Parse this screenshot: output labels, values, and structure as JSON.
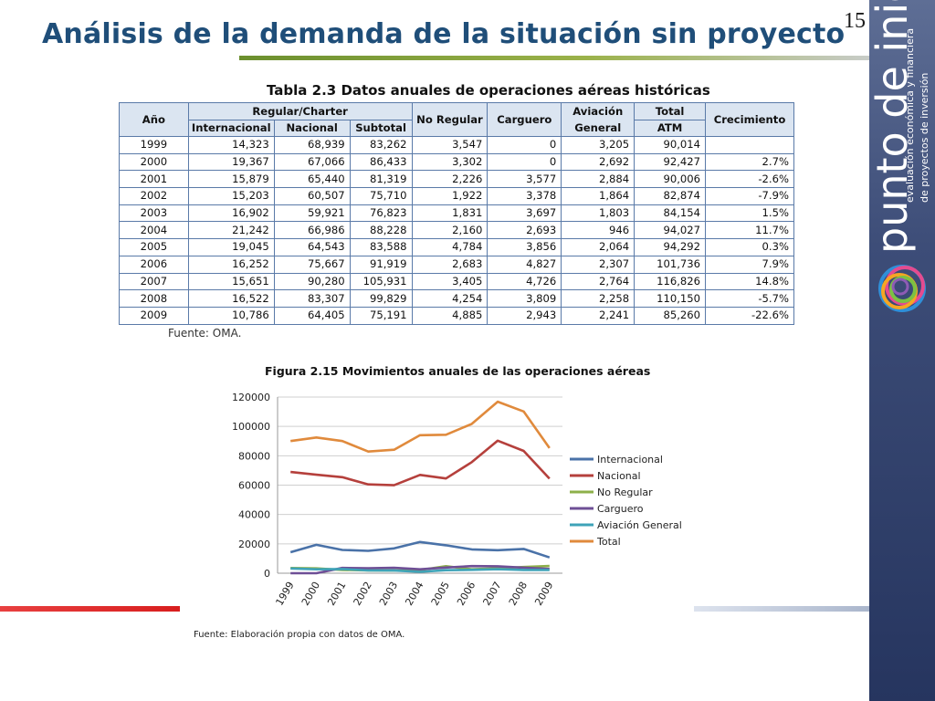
{
  "slide": {
    "title": "Análisis de la demanda de la situación sin proyecto",
    "page_number": "15"
  },
  "brand": {
    "name": "punto de inicio",
    "tagline_line1": "evaluación económica y financiera",
    "tagline_line2": "de proyectos de inversión",
    "colors": [
      "#2f8fd8",
      "#e44b8f",
      "#f5a623",
      "#7cc242",
      "#8e5bb5"
    ]
  },
  "table": {
    "caption": "Tabla 2.3 Datos anuales de operaciones aéreas históricas",
    "headers": {
      "anio": "Año",
      "regular_charter": "Regular/Charter",
      "internacional": "Internacional",
      "nacional": "Nacional",
      "subtotal": "Subtotal",
      "no_regular": "No Regular",
      "carguero": "Carguero",
      "aviacion_general": "Aviación General",
      "total": "Total",
      "atm": "ATM",
      "crecimiento": "Crecimiento"
    },
    "rows": [
      [
        "1999",
        "14,323",
        "68,939",
        "83,262",
        "3,547",
        "0",
        "3,205",
        "90,014",
        ""
      ],
      [
        "2000",
        "19,367",
        "67,066",
        "86,433",
        "3,302",
        "0",
        "2,692",
        "92,427",
        "2.7%"
      ],
      [
        "2001",
        "15,879",
        "65,440",
        "81,319",
        "2,226",
        "3,577",
        "2,884",
        "90,006",
        "-2.6%"
      ],
      [
        "2002",
        "15,203",
        "60,507",
        "75,710",
        "1,922",
        "3,378",
        "1,864",
        "82,874",
        "-7.9%"
      ],
      [
        "2003",
        "16,902",
        "59,921",
        "76,823",
        "1,831",
        "3,697",
        "1,803",
        "84,154",
        "1.5%"
      ],
      [
        "2004",
        "21,242",
        "66,986",
        "88,228",
        "2,160",
        "2,693",
        "946",
        "94,027",
        "11.7%"
      ],
      [
        "2005",
        "19,045",
        "64,543",
        "83,588",
        "4,784",
        "3,856",
        "2,064",
        "94,292",
        "0.3%"
      ],
      [
        "2006",
        "16,252",
        "75,667",
        "91,919",
        "2,683",
        "4,827",
        "2,307",
        "101,736",
        "7.9%"
      ],
      [
        "2007",
        "15,651",
        "90,280",
        "105,931",
        "3,405",
        "4,726",
        "2,764",
        "116,826",
        "14.8%"
      ],
      [
        "2008",
        "16,522",
        "83,307",
        "99,829",
        "4,254",
        "3,809",
        "2,258",
        "110,150",
        "-5.7%"
      ],
      [
        "2009",
        "10,786",
        "64,405",
        "75,191",
        "4,885",
        "2,943",
        "2,241",
        "85,260",
        "-22.6%"
      ]
    ],
    "source": "Fuente: OMA."
  },
  "chart": {
    "caption": "Figura 2.15 Movimientos anuales de las operaciones aéreas",
    "source": "Fuente: Elaboración propia con datos de OMA."
  },
  "chart_data": {
    "type": "line",
    "title": "Figura 2.15 Movimientos anuales de las operaciones aéreas",
    "xlabel": "",
    "ylabel": "",
    "x": [
      "1999",
      "2000",
      "2001",
      "2002",
      "2003",
      "2004",
      "2005",
      "2006",
      "2007",
      "2008",
      "2009"
    ],
    "ylim": [
      0,
      120000
    ],
    "yticks": [
      0,
      20000,
      40000,
      60000,
      80000,
      100000,
      120000
    ],
    "grid": true,
    "legend": "right",
    "series": [
      {
        "name": "Internacional",
        "color": "#4a72a8",
        "values": [
          14323,
          19367,
          15879,
          15203,
          16902,
          21242,
          19045,
          16252,
          15651,
          16522,
          10786
        ]
      },
      {
        "name": "Nacional",
        "color": "#b5403c",
        "values": [
          68939,
          67066,
          65440,
          60507,
          59921,
          66986,
          64543,
          75667,
          90280,
          83307,
          64405
        ]
      },
      {
        "name": "No Regular",
        "color": "#8db04a",
        "values": [
          3547,
          3302,
          2226,
          1922,
          1831,
          2160,
          4784,
          2683,
          3405,
          4254,
          4885
        ]
      },
      {
        "name": "Carguero",
        "color": "#6e4f96",
        "values": [
          0,
          0,
          3577,
          3378,
          3697,
          2693,
          3856,
          4827,
          4726,
          3809,
          2943
        ]
      },
      {
        "name": "Aviación General",
        "color": "#3ea3b8",
        "values": [
          3205,
          2692,
          2884,
          1864,
          1803,
          946,
          2064,
          2307,
          2764,
          2258,
          2241
        ]
      },
      {
        "name": "Total",
        "color": "#e08a3c",
        "values": [
          90014,
          92427,
          90006,
          82874,
          84154,
          94027,
          94292,
          101736,
          116826,
          110150,
          85260
        ]
      }
    ]
  }
}
